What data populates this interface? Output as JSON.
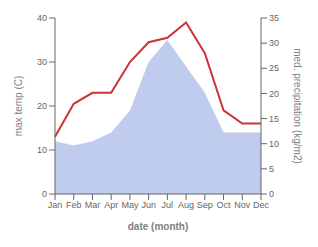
{
  "chart_data": {
    "type": "line",
    "xlabel": "date (month)",
    "ylabel": "max temp (C)",
    "y2label": "med. precipitation (kg/m2)",
    "categories": [
      "Jan",
      "Feb",
      "Mar",
      "Apr",
      "May",
      "Jun",
      "Jul",
      "Aug",
      "Sep",
      "Oct",
      "Nov",
      "Dec"
    ],
    "series": [
      {
        "type": "area",
        "color": "#c0ccee",
        "values": [
          12,
          11,
          12,
          14,
          19,
          30,
          35,
          29,
          23,
          14,
          14,
          14
        ]
      },
      {
        "type": "line",
        "color": "#cc3333",
        "values": [
          13,
          20.5,
          23,
          23,
          30,
          34.5,
          35.5,
          39,
          32,
          19,
          16,
          16
        ]
      }
    ],
    "ylim": [
      0,
      40
    ],
    "yticks": [
      0,
      10,
      20,
      30,
      40
    ],
    "y2lim": [
      0,
      35
    ],
    "y2ticks": [
      0,
      5,
      10,
      15,
      20,
      25,
      30,
      35
    ],
    "grid": false
  }
}
